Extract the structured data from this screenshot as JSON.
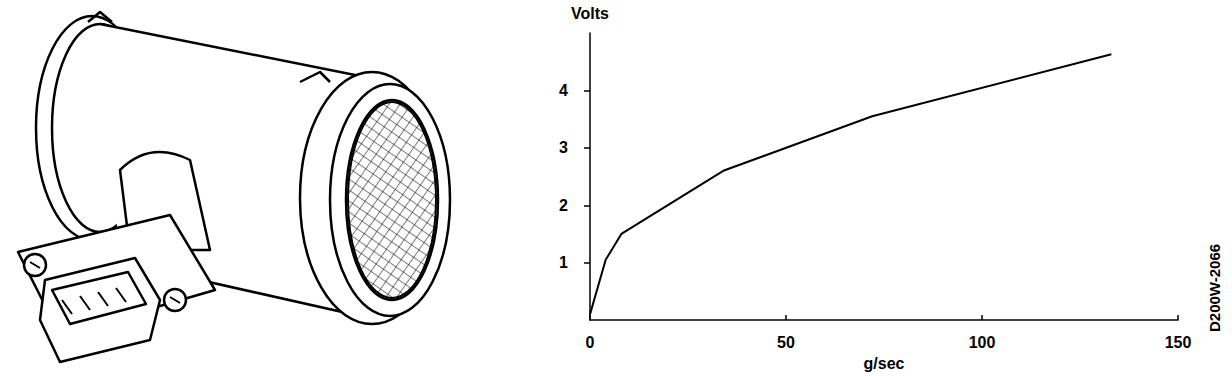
{
  "chart_data": {
    "type": "line",
    "x": [
      0,
      4,
      8,
      34,
      72,
      133
    ],
    "values": [
      0.1,
      1.05,
      1.5,
      2.6,
      3.55,
      4.63
    ],
    "color": "#000000",
    "xlabel": "g/sec",
    "ylabel": "Volts",
    "xlim": [
      0,
      150
    ],
    "xticks": [
      0,
      50,
      100,
      150
    ],
    "ylim": [
      0,
      5
    ],
    "yticks": [
      1,
      2,
      3,
      4
    ],
    "grid": false,
    "annotation": "D200W-2066"
  }
}
